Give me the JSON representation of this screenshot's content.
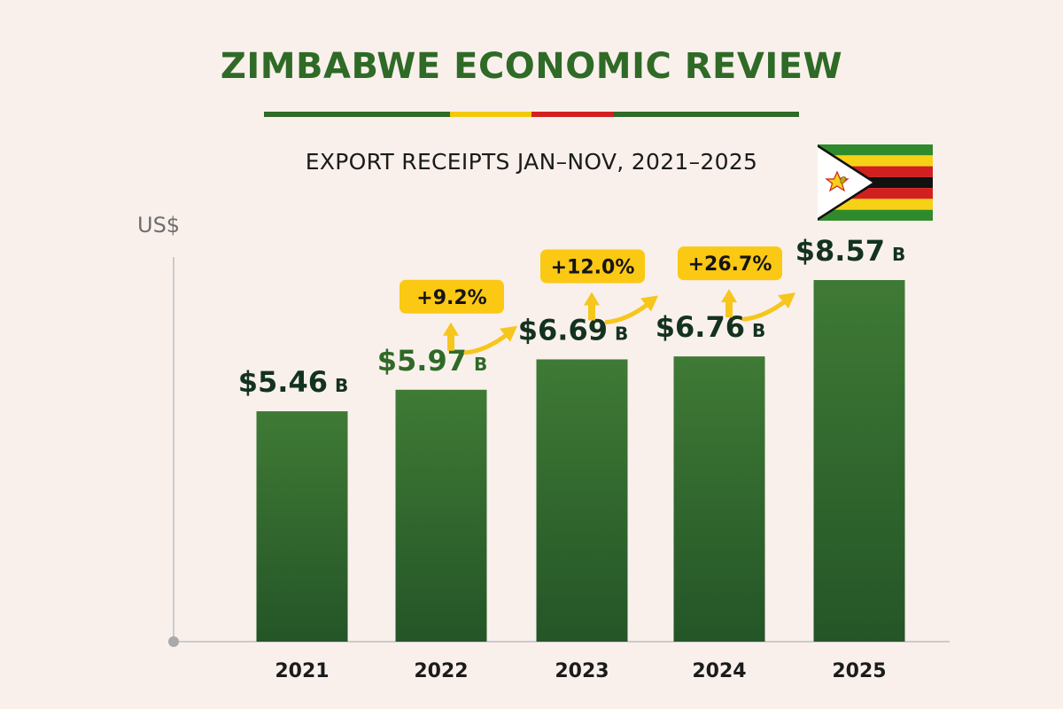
{
  "header": {
    "title": "ZIMBABWE ECONOMIC REVIEW",
    "subtitle": "EXPORT RECEIPTS JAN–NOV, 2021–2025",
    "stripe_colors": [
      "#2f6a27",
      "#f2c80f",
      "#d21f1f",
      "#2f6a27"
    ]
  },
  "axis": {
    "unit_label": "US$"
  },
  "flag": {
    "name": "zimbabwe-flag",
    "colors": {
      "green": "#2f8a2b",
      "yellow": "#f7d116",
      "red": "#d21f1f",
      "black": "#111111",
      "white": "#ffffff",
      "star": "#f7d116"
    }
  },
  "colors": {
    "bar_top": "#3f7a35",
    "bar_bottom": "#245527",
    "value_dark": "#13321f",
    "value_green": "#2f6a27",
    "badge": "#fbc813",
    "arrow": "#f6c61d",
    "axis": "#bdbdbd"
  },
  "chart_data": {
    "type": "bar",
    "title": "EXPORT RECEIPTS JAN–NOV, 2021–2025",
    "xlabel": "",
    "ylabel": "US$",
    "ylim": [
      0,
      9
    ],
    "grid": false,
    "categories": [
      "2021",
      "2022",
      "2023",
      "2024",
      "2025"
    ],
    "values": [
      5.46,
      5.97,
      6.69,
      6.76,
      8.57
    ],
    "value_labels": [
      "$5.46",
      "$5.97",
      "$6.69",
      "$6.76",
      "$8.57"
    ],
    "value_suffix": "B",
    "growth_labels": [
      null,
      "+9.2%",
      "+12.0%",
      "+26.7%",
      null
    ],
    "highlight_green_label": [
      false,
      true,
      false,
      false,
      false
    ]
  }
}
